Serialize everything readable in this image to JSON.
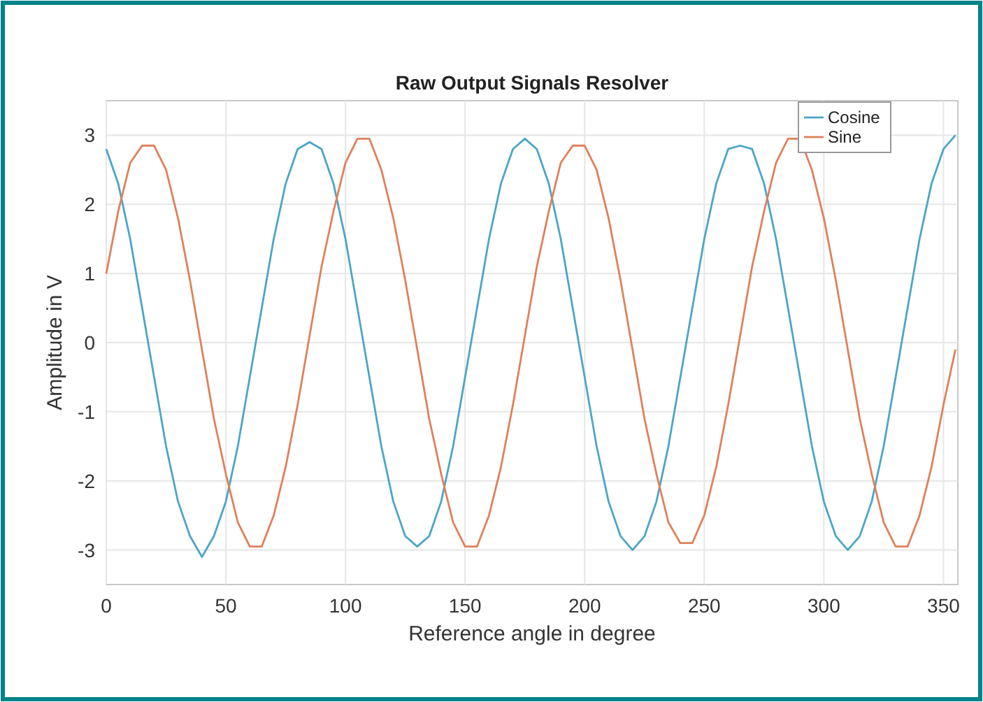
{
  "chart_data": {
    "type": "line",
    "title": "Raw Output Signals Resolver",
    "xlabel": "Reference angle in degree",
    "ylabel": "Amplitude in V",
    "x": [
      0,
      5,
      10,
      15,
      20,
      25,
      30,
      35,
      40,
      45,
      50,
      55,
      60,
      65,
      70,
      75,
      80,
      85,
      90,
      95,
      100,
      105,
      110,
      115,
      120,
      125,
      130,
      135,
      140,
      145,
      150,
      155,
      160,
      165,
      170,
      175,
      180,
      185,
      190,
      195,
      200,
      205,
      210,
      215,
      220,
      225,
      230,
      235,
      240,
      245,
      250,
      255,
      260,
      265,
      270,
      275,
      280,
      285,
      290,
      295,
      300,
      305,
      310,
      315,
      320,
      325,
      330,
      335,
      340,
      345,
      350,
      355
    ],
    "series": [
      {
        "name": "Cosine",
        "color": "#4ba6c6",
        "values": [
          2.8,
          2.3,
          1.5,
          0.5,
          -0.5,
          -1.5,
          -2.3,
          -2.8,
          -3.1,
          -2.8,
          -2.3,
          -1.5,
          -0.5,
          0.5,
          1.5,
          2.3,
          2.8,
          2.9,
          2.8,
          2.3,
          1.5,
          0.5,
          -0.5,
          -1.5,
          -2.3,
          -2.8,
          -2.95,
          -2.8,
          -2.3,
          -1.5,
          -0.5,
          0.5,
          1.5,
          2.3,
          2.8,
          2.95,
          2.8,
          2.3,
          1.5,
          0.5,
          -0.5,
          -1.5,
          -2.3,
          -2.8,
          -3.0,
          -2.8,
          -2.3,
          -1.5,
          -0.5,
          0.5,
          1.5,
          2.3,
          2.8,
          2.85,
          2.8,
          2.3,
          1.5,
          0.5,
          -0.5,
          -1.5,
          -2.3,
          -2.8,
          -3.0,
          -2.8,
          -2.3,
          -1.5,
          -0.5,
          0.5,
          1.5,
          2.3,
          2.8,
          3.0
        ]
      },
      {
        "name": "Sine",
        "color": "#e0805a",
        "values": [
          1.0,
          1.9,
          2.6,
          2.85,
          2.85,
          2.5,
          1.8,
          0.9,
          -0.1,
          -1.1,
          -1.9,
          -2.6,
          -2.95,
          -2.95,
          -2.5,
          -1.8,
          -0.9,
          0.1,
          1.1,
          1.9,
          2.6,
          2.95,
          2.95,
          2.5,
          1.8,
          0.9,
          -0.1,
          -1.1,
          -1.9,
          -2.6,
          -2.95,
          -2.95,
          -2.5,
          -1.8,
          -0.9,
          0.1,
          1.1,
          1.9,
          2.6,
          2.85,
          2.85,
          2.5,
          1.8,
          0.9,
          -0.1,
          -1.1,
          -1.9,
          -2.6,
          -2.9,
          -2.9,
          -2.5,
          -1.8,
          -0.9,
          0.1,
          1.1,
          1.9,
          2.6,
          2.95,
          2.95,
          2.5,
          1.8,
          0.9,
          -0.1,
          -1.1,
          -1.9,
          -2.6,
          -2.95,
          -2.95,
          -2.5,
          -1.8,
          -0.9,
          -0.1
        ]
      }
    ],
    "xlim": [
      0,
      356
    ],
    "xticks": [
      0,
      50,
      100,
      150,
      200,
      250,
      300,
      350
    ],
    "ylim": [
      -3.5,
      3.5
    ],
    "yticks": [
      -3,
      -2,
      -1,
      0,
      1,
      2,
      3
    ],
    "grid": true,
    "legend": "top right",
    "line_style": "solid",
    "marker": "none"
  }
}
